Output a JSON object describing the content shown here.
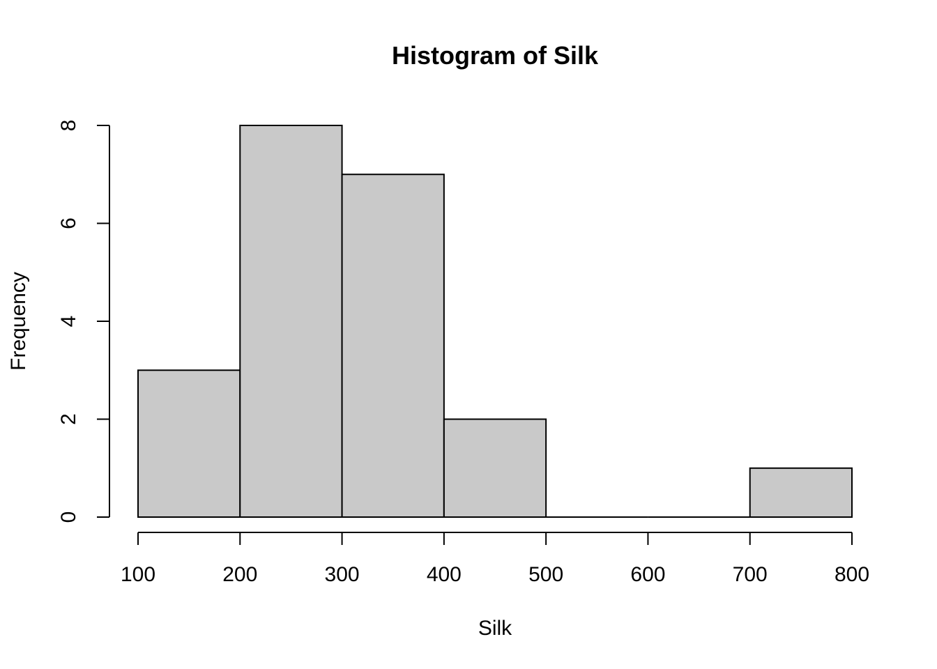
{
  "chart_data": {
    "type": "bar",
    "title": "Histogram of Silk",
    "xlabel": "Silk",
    "ylabel": "Frequency",
    "bins": [
      {
        "start": 100,
        "end": 200,
        "count": 3
      },
      {
        "start": 200,
        "end": 300,
        "count": 8
      },
      {
        "start": 300,
        "end": 400,
        "count": 7
      },
      {
        "start": 400,
        "end": 500,
        "count": 2
      },
      {
        "start": 500,
        "end": 600,
        "count": 0
      },
      {
        "start": 600,
        "end": 700,
        "count": 0
      },
      {
        "start": 700,
        "end": 800,
        "count": 1
      }
    ],
    "xlim": [
      100,
      800
    ],
    "ylim": [
      0,
      8
    ],
    "x_ticks": [
      "100",
      "200",
      "300",
      "400",
      "500",
      "600",
      "700",
      "800"
    ],
    "y_ticks": [
      "0",
      "2",
      "4",
      "6",
      "8"
    ],
    "bar_fill": "#c9c9c9",
    "bar_stroke": "#000000",
    "grid": false,
    "legend": "none"
  }
}
